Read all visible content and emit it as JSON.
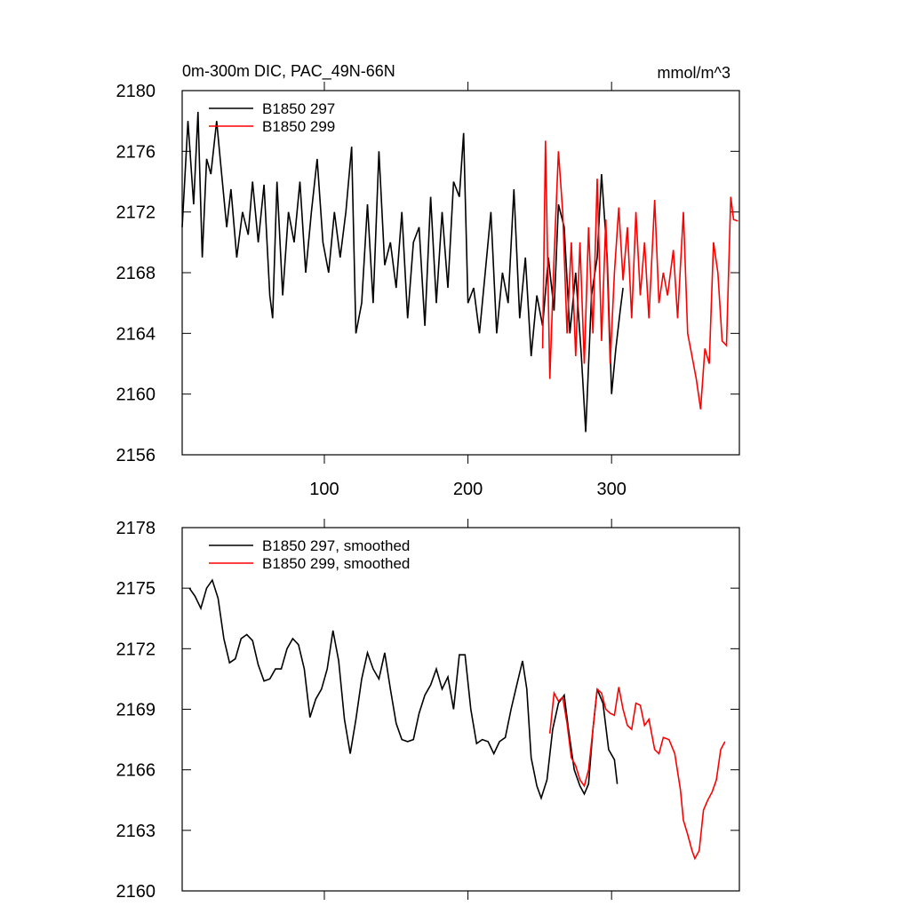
{
  "chart_data": [
    {
      "type": "line",
      "title": "0m-300m DIC, PAC_49N-66N",
      "units": "mmol/m^3",
      "xlim": [
        1,
        389
      ],
      "xticks": [
        100,
        200,
        300
      ],
      "xtick_labels": true,
      "ylim": [
        2156,
        2180
      ],
      "yticks": [
        2156,
        2160,
        2164,
        2168,
        2172,
        2176,
        2180
      ],
      "legend": "upper left",
      "series": [
        {
          "name": "B1850 297",
          "color": "#000000",
          "x": [
            1,
            5,
            9,
            12,
            15,
            18,
            21,
            25,
            28,
            32,
            35,
            39,
            43,
            47,
            50,
            54,
            58,
            62,
            64,
            67,
            71,
            75,
            79,
            83,
            87,
            91,
            95,
            99,
            103,
            107,
            111,
            115,
            119,
            122,
            126,
            130,
            134,
            138,
            142,
            146,
            150,
            154,
            158,
            162,
            166,
            170,
            174,
            178,
            182,
            186,
            190,
            194,
            197,
            200,
            204,
            208,
            212,
            216,
            220,
            224,
            228,
            232,
            236,
            240,
            244,
            248,
            252,
            256,
            260,
            263,
            267,
            271,
            275,
            279,
            282,
            286,
            290,
            293,
            297,
            300,
            303,
            306,
            308
          ],
          "values": [
            2171,
            2178,
            2172.5,
            2178.6,
            2169,
            2175.5,
            2174.5,
            2178,
            2175,
            2171,
            2173.5,
            2169,
            2172,
            2170.5,
            2174,
            2170,
            2173.8,
            2166.5,
            2165,
            2174,
            2166.5,
            2172,
            2170,
            2174,
            2168,
            2172,
            2175.5,
            2170,
            2168,
            2172,
            2169,
            2172,
            2176.3,
            2164,
            2166,
            2172.5,
            2166,
            2176,
            2168.5,
            2170,
            2167,
            2172,
            2165,
            2170,
            2171,
            2164.5,
            2173,
            2166,
            2172,
            2167,
            2174,
            2173,
            2177.2,
            2166,
            2167,
            2164,
            2168,
            2172,
            2164,
            2168,
            2166,
            2173.5,
            2165,
            2169,
            2162.5,
            2166.5,
            2164.5,
            2169,
            2165.5,
            2172.5,
            2171,
            2164,
            2168,
            2162.5,
            2157.5,
            2166.5,
            2169,
            2174.5,
            2169,
            2160,
            2163,
            2165.5,
            2167
          ]
        },
        {
          "name": "B1850 299",
          "color": "#ff0000",
          "x": [
            252,
            254,
            257,
            260,
            263,
            266,
            269,
            272,
            275,
            278,
            281,
            284,
            287,
            290,
            293,
            296,
            299,
            302,
            305,
            308,
            311,
            314,
            317,
            320,
            323,
            326,
            330,
            333,
            336,
            339,
            343,
            346,
            350,
            353,
            356,
            359,
            362,
            365,
            368,
            371,
            374,
            377,
            380,
            383,
            385,
            388
          ],
          "values": [
            2163,
            2176.7,
            2161,
            2169,
            2176,
            2172,
            2164,
            2170,
            2162.5,
            2170,
            2162,
            2171,
            2164,
            2174.2,
            2163.5,
            2171.5,
            2162,
            2168,
            2172.3,
            2167.5,
            2171,
            2165,
            2172,
            2166.5,
            2170,
            2165,
            2172.8,
            2166,
            2168,
            2166.5,
            2169.5,
            2165,
            2172,
            2164,
            2162.5,
            2161,
            2159,
            2163,
            2162,
            2170,
            2168,
            2163.5,
            2163.2,
            2173,
            2171.5,
            2171.4
          ]
        }
      ]
    },
    {
      "type": "line",
      "xlim": [
        1,
        389
      ],
      "xticks": [
        100,
        200,
        300
      ],
      "xtick_labels": false,
      "ylim": [
        2160,
        2178
      ],
      "yticks": [
        2160,
        2163,
        2166,
        2169,
        2172,
        2175,
        2178
      ],
      "legend": "upper left",
      "series": [
        {
          "name": "B1850 297, smoothed",
          "color": "#000000",
          "x": [
            6,
            10,
            14,
            18,
            22,
            26,
            30,
            34,
            38,
            42,
            46,
            50,
            54,
            58,
            62,
            66,
            70,
            74,
            78,
            82,
            86,
            90,
            94,
            98,
            102,
            106,
            110,
            114,
            118,
            122,
            126,
            130,
            134,
            138,
            142,
            146,
            150,
            154,
            158,
            162,
            166,
            170,
            174,
            178,
            182,
            186,
            190,
            194,
            198,
            202,
            206,
            210,
            214,
            218,
            222,
            226,
            230,
            234,
            238,
            241,
            244,
            248,
            251,
            255,
            259,
            263,
            267,
            270,
            274,
            278,
            281,
            284,
            287,
            290,
            294,
            298,
            302,
            304
          ],
          "values": [
            2175,
            2174.6,
            2174,
            2175,
            2175.4,
            2174.5,
            2172.5,
            2171.3,
            2171.5,
            2172.5,
            2172.7,
            2172.4,
            2171.2,
            2170.4,
            2170.5,
            2171,
            2171,
            2172,
            2172.5,
            2172.2,
            2171,
            2168.6,
            2169.5,
            2170,
            2171,
            2172.9,
            2171.4,
            2168.5,
            2166.8,
            2168.5,
            2170.5,
            2171.8,
            2171,
            2170.5,
            2171.8,
            2170,
            2168.3,
            2167.5,
            2167.4,
            2167.5,
            2168.8,
            2169.7,
            2170.2,
            2171,
            2170,
            2170.6,
            2169,
            2171.7,
            2171.7,
            2169,
            2167.3,
            2167.5,
            2167.4,
            2166.8,
            2167.4,
            2167.6,
            2169,
            2170.2,
            2171.4,
            2170,
            2166.6,
            2165.2,
            2164.6,
            2165.5,
            2168,
            2169.3,
            2169.7,
            2168,
            2166,
            2165.2,
            2164.8,
            2165.3,
            2168,
            2170,
            2169.3,
            2167,
            2166.5,
            2165.3
          ]
        },
        {
          "name": "B1850 299, smoothed",
          "color": "#ff0000",
          "x": [
            257,
            260,
            263,
            266,
            269,
            272,
            275,
            278,
            281,
            284,
            287,
            290,
            293,
            296,
            299,
            302,
            305,
            308,
            311,
            314,
            317,
            320,
            323,
            326,
            330,
            333,
            336,
            340,
            344,
            348,
            350,
            353,
            356,
            358,
            361,
            364,
            367,
            370,
            373,
            376,
            379
          ],
          "values": [
            2167.8,
            2169.8,
            2169.4,
            2169.6,
            2168.3,
            2166.6,
            2166.2,
            2165.5,
            2165.2,
            2166,
            2168,
            2170,
            2169.8,
            2169,
            2168.8,
            2168.7,
            2170.1,
            2169,
            2168.2,
            2168,
            2169.3,
            2169.2,
            2168.2,
            2168.5,
            2167,
            2166.8,
            2167.6,
            2167.5,
            2166.8,
            2165,
            2163.5,
            2162.8,
            2162,
            2161.6,
            2162,
            2164,
            2164.5,
            2164.9,
            2165.5,
            2167,
            2167.4
          ]
        }
      ]
    }
  ]
}
